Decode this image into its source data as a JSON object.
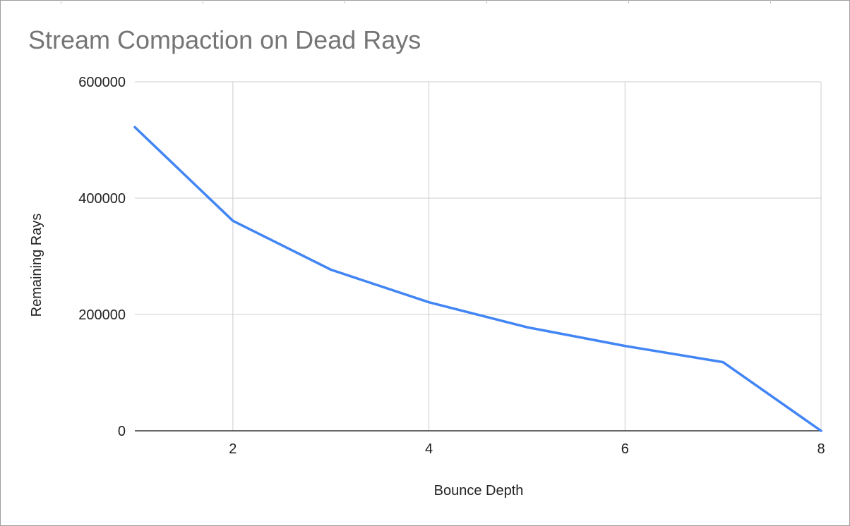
{
  "chart_data": {
    "type": "line",
    "title": "Stream Compaction on Dead Rays",
    "xlabel": "Bounce Depth",
    "ylabel": "Remaining Rays",
    "x": [
      1,
      2,
      3,
      4,
      5,
      6,
      7,
      8
    ],
    "series": [
      {
        "values": [
          522000,
          361000,
          277000,
          221000,
          178000,
          146000,
          118000,
          0
        ]
      }
    ],
    "xlim": [
      1,
      8
    ],
    "ylim": [
      0,
      600000
    ],
    "xticks": [
      2,
      4,
      6,
      8
    ],
    "yticks": [
      0,
      200000,
      400000,
      600000
    ],
    "xtick_labels": [
      "2",
      "4",
      "6",
      "8"
    ],
    "ytick_labels": [
      "0",
      "200000",
      "400000",
      "600000"
    ],
    "grid": true,
    "legend": "none",
    "colors": {
      "series": "#4285f4",
      "grid": "#cccccc",
      "axis": "#333333",
      "title": "#757575"
    }
  }
}
